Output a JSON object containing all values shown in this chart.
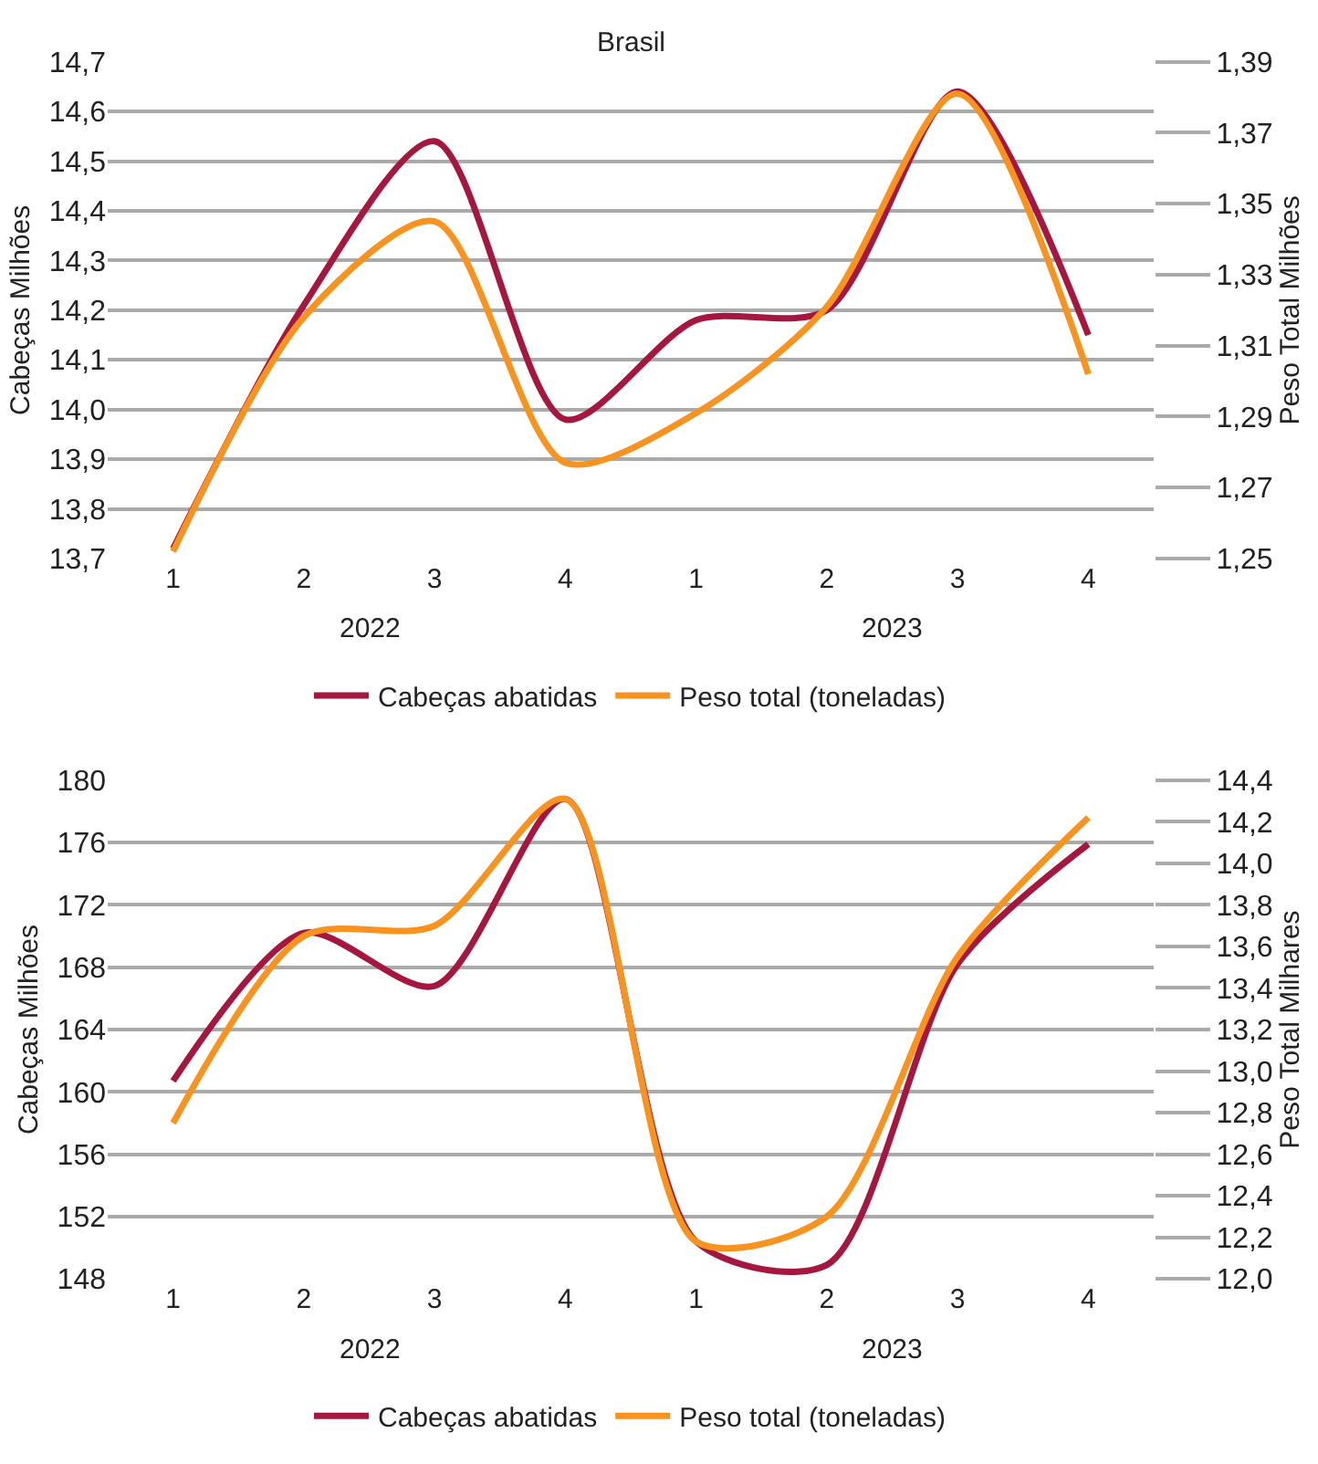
{
  "chart_data": [
    {
      "type": "line",
      "title": "Brasil",
      "ylabel": "Cabeças Milhões",
      "y2label": "Peso Total Milhões",
      "categories": [
        "1",
        "2",
        "3",
        "4",
        "1",
        "2",
        "3",
        "4"
      ],
      "annotations": [
        "2022",
        "2023"
      ],
      "series": [
        {
          "name": "Cabeças abatidas",
          "color": "#a6173f",
          "values": [
            13.72,
            14.21,
            14.54,
            13.98,
            14.18,
            14.2,
            14.64,
            14.15
          ]
        },
        {
          "name": "Peso total (toneladas)",
          "color": "#f7931e",
          "axis": "y2",
          "values": [
            1.252,
            1.318,
            1.345,
            1.277,
            1.291,
            1.321,
            1.381,
            1.302
          ]
        }
      ],
      "ylim": [
        13.7,
        14.7
      ],
      "yticks": [
        {
          "value": 13.7,
          "label": "13,7"
        },
        {
          "value": 13.8,
          "label": "13,8"
        },
        {
          "value": 13.9,
          "label": "13,9"
        },
        {
          "value": 14.0,
          "label": "14,0"
        },
        {
          "value": 14.1,
          "label": "14,1"
        },
        {
          "value": 14.2,
          "label": "14,2"
        },
        {
          "value": 14.3,
          "label": "14,3"
        },
        {
          "value": 14.4,
          "label": "14,4"
        },
        {
          "value": 14.5,
          "label": "14,5"
        },
        {
          "value": 14.6,
          "label": "14,6"
        },
        {
          "value": 14.7,
          "label": "14,7"
        }
      ],
      "y2lim": [
        1.25,
        1.39
      ],
      "y2ticks": [
        {
          "value": 1.25,
          "label": "1,25"
        },
        {
          "value": 1.27,
          "label": "1,27"
        },
        {
          "value": 1.29,
          "label": "1,29"
        },
        {
          "value": 1.31,
          "label": "1,31"
        },
        {
          "value": 1.33,
          "label": "1,33"
        },
        {
          "value": 1.35,
          "label": "1,35"
        },
        {
          "value": 1.37,
          "label": "1,37"
        },
        {
          "value": 1.39,
          "label": "1,39"
        }
      ],
      "grid": "y",
      "legend": "bottom",
      "marker": "none",
      "line_style": "solid"
    },
    {
      "type": "line",
      "ylabel": "Cabeças Milhões",
      "y2label": "Peso Total Milhares",
      "categories": [
        "1",
        "2",
        "3",
        "4",
        "1",
        "2",
        "3",
        "4"
      ],
      "annotations": [
        "2022",
        "2023"
      ],
      "series": [
        {
          "name": "Cabeças abatidas",
          "color": "#a6173f",
          "values": [
            160.7,
            170.2,
            166.8,
            178.8,
            150.4,
            148.9,
            168.2,
            175.9
          ]
        },
        {
          "name": "Peso total (toneladas)",
          "color": "#f7931e",
          "axis": "y2",
          "values": [
            12.75,
            13.65,
            13.7,
            14.31,
            12.18,
            12.3,
            13.55,
            14.22
          ]
        }
      ],
      "ylim": [
        148,
        180
      ],
      "yticks": [
        148,
        152,
        156,
        160,
        164,
        168,
        172,
        176,
        180
      ],
      "y2lim": [
        12.0,
        14.4
      ],
      "y2ticks": [
        {
          "value": 12.0,
          "label": "12,0"
        },
        {
          "value": 12.2,
          "label": "12,2"
        },
        {
          "value": 12.4,
          "label": "12,4"
        },
        {
          "value": 12.6,
          "label": "12,6"
        },
        {
          "value": 12.8,
          "label": "12,8"
        },
        {
          "value": 13.0,
          "label": "13,0"
        },
        {
          "value": 13.2,
          "label": "13,2"
        },
        {
          "value": 13.4,
          "label": "13,4"
        },
        {
          "value": 13.6,
          "label": "13,6"
        },
        {
          "value": 13.8,
          "label": "13,8"
        },
        {
          "value": 14.0,
          "label": "14,0"
        },
        {
          "value": 14.2,
          "label": "14,2"
        },
        {
          "value": 14.4,
          "label": "14,4"
        }
      ],
      "grid": "y",
      "legend": "bottom",
      "marker": "none",
      "line_style": "solid"
    }
  ]
}
